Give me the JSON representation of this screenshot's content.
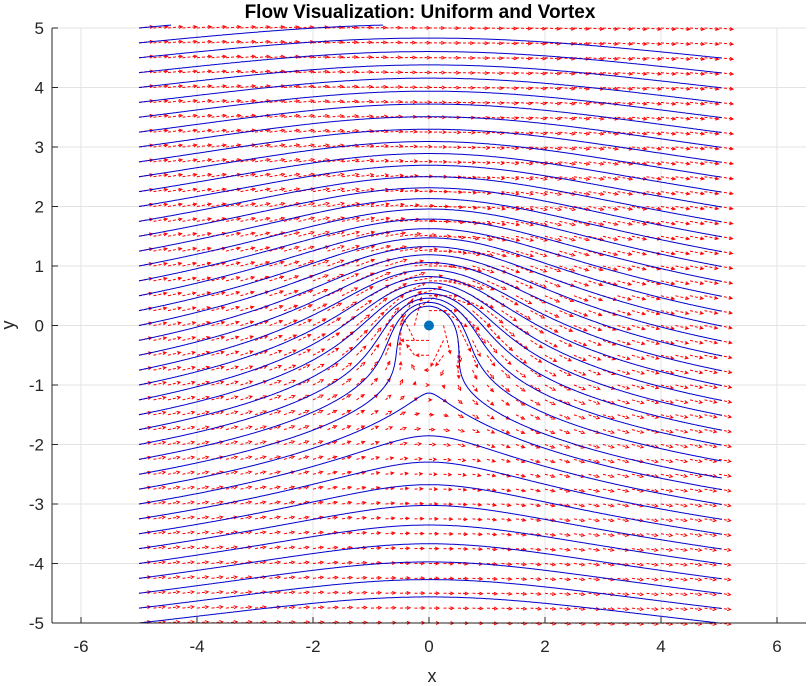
{
  "chart_data": {
    "type": "line",
    "title": "Flow Visualization: Uniform and Vortex",
    "xlabel": "x",
    "ylabel": "y",
    "xlim": [
      -6.5,
      6.5
    ],
    "ylim": [
      -5,
      5
    ],
    "x_ticks": [
      -6,
      -4,
      -2,
      0,
      2,
      4,
      6
    ],
    "y_ticks": [
      -5,
      -4,
      -3,
      -2,
      -1,
      0,
      1,
      2,
      3,
      4,
      5
    ],
    "x_tick_labels": [
      "-6",
      "-4",
      "-2",
      "0",
      "2",
      "4",
      "6"
    ],
    "y_tick_labels": [
      "-5",
      "-4",
      "-3",
      "-2",
      "-1",
      "0",
      "1",
      "2",
      "3",
      "4",
      "5"
    ],
    "grid": true,
    "field": {
      "uniform_speed": 1,
      "vortex_strength": 1,
      "vortex_center": [
        0,
        0
      ],
      "domain_x": [
        -5,
        5
      ],
      "domain_y": [
        -5,
        5
      ]
    },
    "streamlines": {
      "color": "#0000cc",
      "start_x": -5,
      "start_y_values": [
        -5,
        -4.75,
        -4.5,
        -4.25,
        -4,
        -3.75,
        -3.5,
        -3.25,
        -3,
        -2.75,
        -2.5,
        -2.25,
        -2,
        -1.75,
        -1.5,
        -1.25,
        -1,
        -0.75,
        -0.5,
        -0.25,
        0,
        0.25,
        0.5,
        0.75,
        1,
        1.25,
        1.5,
        1.75,
        2,
        2.25,
        2.5,
        2.75,
        3,
        3.25,
        3.5,
        3.75,
        4,
        4.25,
        4.5,
        4.75,
        5
      ]
    },
    "quiver": {
      "color": "#ff0000",
      "x_range": [
        -5,
        5
      ],
      "y_range": [
        -5,
        5
      ],
      "spacing": 0.25
    },
    "vortex_marker": {
      "x": 0,
      "y": 0,
      "color": "#0072bd"
    }
  }
}
